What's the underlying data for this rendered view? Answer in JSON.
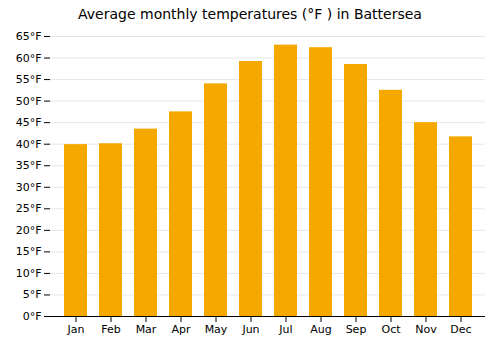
{
  "chart_data": {
    "type": "bar",
    "title": "Average monthly temperatures (°F ) in Battersea",
    "categories": [
      "Jan",
      "Feb",
      "Mar",
      "Apr",
      "May",
      "Jun",
      "Jul",
      "Aug",
      "Sep",
      "Oct",
      "Nov",
      "Dec"
    ],
    "values": [
      39.9,
      40.1,
      43.5,
      47.5,
      54.0,
      59.2,
      63.0,
      62.4,
      58.5,
      52.5,
      45.0,
      41.7
    ],
    "color": "#F5A800",
    "ylim": [
      0,
      65
    ],
    "yticks": [
      {
        "value": 0,
        "label": "0°F"
      },
      {
        "value": 5,
        "label": "5°F"
      },
      {
        "value": 10,
        "label": "10°F"
      },
      {
        "value": 15,
        "label": "15°F"
      },
      {
        "value": 20,
        "label": "20°F"
      },
      {
        "value": 25,
        "label": "25°F"
      },
      {
        "value": 30,
        "label": "30°F"
      },
      {
        "value": 35,
        "label": "35°F"
      },
      {
        "value": 40,
        "label": "40°F"
      },
      {
        "value": 45,
        "label": "45°F"
      },
      {
        "value": 50,
        "label": "50°F"
      },
      {
        "value": 55,
        "label": "55°F"
      },
      {
        "value": 60,
        "label": "60°F"
      },
      {
        "value": 65,
        "label": "65°F"
      }
    ],
    "grid": true
  }
}
